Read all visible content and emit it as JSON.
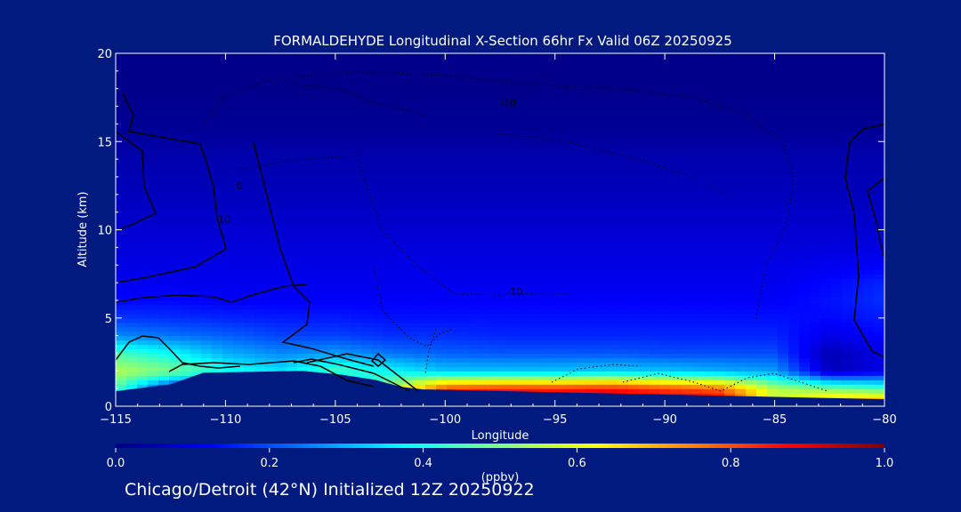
{
  "chart_data": {
    "type": "heatmap",
    "title": "FORMALDEHYDE Longitudinal X-Section 66hr  Fx Valid 06Z 20250925",
    "xlabel": "Longitude",
    "ylabel": "Altitude (km)",
    "xlim": [
      -115,
      -80
    ],
    "ylim": [
      0,
      20
    ],
    "x_ticks": [
      -115,
      -110,
      -105,
      -100,
      -95,
      -90,
      -85,
      -80
    ],
    "x_tick_labels": [
      "−115",
      "−110",
      "−105",
      "−100",
      "−95",
      "−90",
      "−85",
      "−80"
    ],
    "y_ticks": [
      0,
      5,
      10,
      15,
      20
    ],
    "y_tick_labels": [
      "0",
      "5",
      "10",
      "15",
      "20"
    ],
    "colorbar": {
      "label": "(ppbv)",
      "min": 0.0,
      "max": 1.0,
      "ticks": [
        0.0,
        0.2,
        0.4,
        0.6,
        0.8,
        1.0
      ],
      "tick_labels": [
        "0.0",
        "0.2",
        "0.4",
        "0.6",
        "0.8",
        "1.0"
      ]
    },
    "colorscale": [
      "#000080",
      "#0000ff",
      "#0080ff",
      "#00ffff",
      "#80ff80",
      "#ffff00",
      "#ff8000",
      "#ff0000",
      "#800000"
    ],
    "field": {
      "x": [
        -115,
        -112.5,
        -110,
        -107.5,
        -105,
        -102.5,
        -100,
        -97.5,
        -95,
        -92.5,
        -90,
        -87.5,
        -85,
        -82.5,
        -80
      ],
      "y": [
        0,
        1,
        2,
        3,
        4,
        5,
        6,
        7,
        8,
        9,
        10,
        12,
        14,
        16,
        18,
        20
      ],
      "values": [
        [
          0.12,
          0.1,
          0.08,
          0.08,
          0.08,
          0.15,
          0.95,
          0.96,
          0.96,
          0.97,
          0.95,
          0.96,
          0.6,
          0.8,
          0.85
        ],
        [
          0.45,
          0.12,
          0.1,
          0.1,
          0.14,
          0.55,
          0.82,
          0.84,
          0.84,
          0.86,
          0.82,
          0.78,
          0.55,
          0.5,
          0.45
        ],
        [
          0.55,
          0.5,
          0.4,
          0.35,
          0.45,
          0.38,
          0.32,
          0.32,
          0.32,
          0.33,
          0.32,
          0.3,
          0.28,
          0.06,
          0.1
        ],
        [
          0.45,
          0.38,
          0.3,
          0.26,
          0.28,
          0.24,
          0.22,
          0.21,
          0.21,
          0.21,
          0.2,
          0.2,
          0.2,
          0.05,
          0.1
        ],
        [
          0.26,
          0.24,
          0.22,
          0.19,
          0.19,
          0.17,
          0.17,
          0.16,
          0.16,
          0.16,
          0.16,
          0.16,
          0.16,
          0.1,
          0.13
        ],
        [
          0.18,
          0.17,
          0.16,
          0.15,
          0.15,
          0.14,
          0.14,
          0.14,
          0.14,
          0.14,
          0.14,
          0.14,
          0.14,
          0.13,
          0.15
        ],
        [
          0.13,
          0.13,
          0.12,
          0.12,
          0.12,
          0.12,
          0.12,
          0.12,
          0.12,
          0.12,
          0.12,
          0.12,
          0.12,
          0.14,
          0.17
        ],
        [
          0.11,
          0.11,
          0.11,
          0.11,
          0.11,
          0.11,
          0.11,
          0.11,
          0.11,
          0.11,
          0.11,
          0.11,
          0.11,
          0.13,
          0.16
        ],
        [
          0.1,
          0.1,
          0.1,
          0.1,
          0.1,
          0.1,
          0.1,
          0.1,
          0.1,
          0.1,
          0.1,
          0.1,
          0.1,
          0.11,
          0.12
        ],
        [
          0.09,
          0.09,
          0.09,
          0.09,
          0.09,
          0.09,
          0.09,
          0.09,
          0.09,
          0.09,
          0.09,
          0.09,
          0.09,
          0.09,
          0.1
        ],
        [
          0.08,
          0.08,
          0.08,
          0.08,
          0.08,
          0.08,
          0.08,
          0.08,
          0.08,
          0.08,
          0.08,
          0.08,
          0.08,
          0.08,
          0.08
        ],
        [
          0.06,
          0.06,
          0.06,
          0.06,
          0.06,
          0.06,
          0.06,
          0.06,
          0.06,
          0.06,
          0.06,
          0.06,
          0.06,
          0.06,
          0.06
        ],
        [
          0.045,
          0.045,
          0.045,
          0.045,
          0.045,
          0.045,
          0.045,
          0.045,
          0.045,
          0.045,
          0.045,
          0.045,
          0.045,
          0.045,
          0.045
        ],
        [
          0.02,
          0.02,
          0.02,
          0.02,
          0.02,
          0.02,
          0.02,
          0.02,
          0.02,
          0.02,
          0.02,
          0.02,
          0.02,
          0.02,
          0.02
        ],
        [
          0.01,
          0.01,
          0.01,
          0.01,
          0.01,
          0.01,
          0.01,
          0.01,
          0.01,
          0.01,
          0.01,
          0.01,
          0.01,
          0.01,
          0.01
        ],
        [
          0.01,
          0.01,
          0.01,
          0.01,
          0.01,
          0.01,
          0.01,
          0.01,
          0.01,
          0.01,
          0.01,
          0.01,
          0.01,
          0.01,
          0.01
        ]
      ]
    },
    "contour_labels": [
      {
        "text": "-10",
        "x": -110.5,
        "y": 10.4
      },
      {
        "text": "0",
        "x": -109.5,
        "y": 12.3
      },
      {
        "text": "-10",
        "x": -97.2,
        "y": 6.3
      },
      {
        "text": "-10",
        "x": -97.5,
        "y": 17.0
      }
    ],
    "terrain": [
      {
        "x": -115,
        "y": 0.85
      },
      {
        "x": -112.5,
        "y": 1.25
      },
      {
        "x": -111,
        "y": 1.9
      },
      {
        "x": -106.5,
        "y": 2.0
      },
      {
        "x": -104.8,
        "y": 1.8
      },
      {
        "x": -103.2,
        "y": 1.5
      },
      {
        "x": -102,
        "y": 1.1
      },
      {
        "x": -101,
        "y": 0.95
      },
      {
        "x": -80,
        "y": 0.4
      }
    ]
  },
  "footer": {
    "caption": "Chicago/Detroit (42°N) Initialized 12Z 20250922"
  }
}
